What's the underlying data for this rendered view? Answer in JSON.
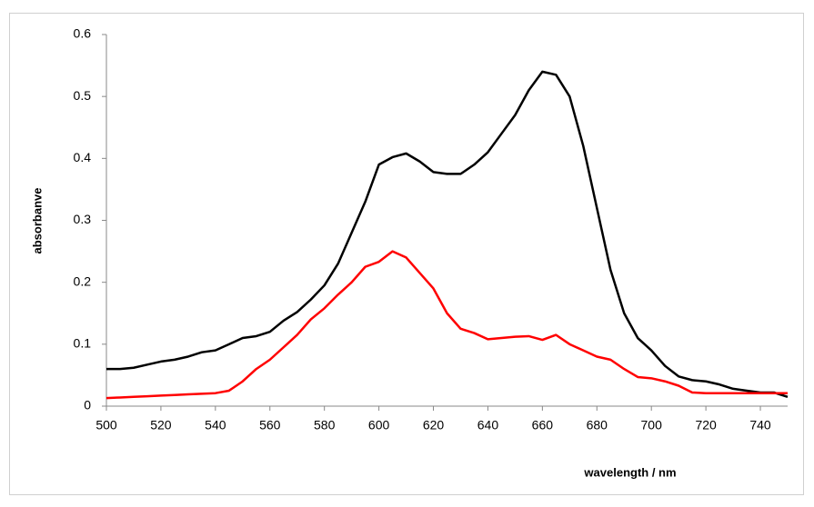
{
  "chart_data": {
    "type": "line",
    "x_label": "wavelength / nm",
    "y_label": "absorbanve",
    "x": [
      500,
      505,
      510,
      515,
      520,
      525,
      530,
      535,
      540,
      545,
      550,
      555,
      560,
      565,
      570,
      575,
      580,
      585,
      590,
      595,
      600,
      605,
      610,
      615,
      620,
      625,
      630,
      635,
      640,
      645,
      650,
      655,
      660,
      665,
      670,
      675,
      680,
      685,
      690,
      695,
      700,
      705,
      710,
      715,
      720,
      725,
      730,
      735,
      740,
      745,
      750
    ],
    "series": [
      {
        "color": "#000000",
        "values": [
          0.06,
          0.06,
          0.062,
          0.067,
          0.072,
          0.075,
          0.08,
          0.087,
          0.09,
          0.1,
          0.11,
          0.113,
          0.12,
          0.138,
          0.152,
          0.172,
          0.195,
          0.23,
          0.28,
          0.33,
          0.39,
          0.402,
          0.408,
          0.395,
          0.378,
          0.375,
          0.375,
          0.39,
          0.41,
          0.44,
          0.47,
          0.51,
          0.54,
          0.535,
          0.5,
          0.42,
          0.32,
          0.22,
          0.15,
          0.11,
          0.09,
          0.065,
          0.048,
          0.042,
          0.04,
          0.035,
          0.028,
          0.025,
          0.022,
          0.022,
          0.015
        ]
      },
      {
        "color": "#ff0000",
        "values": [
          0.013,
          0.014,
          0.015,
          0.016,
          0.017,
          0.018,
          0.019,
          0.02,
          0.021,
          0.025,
          0.04,
          0.06,
          0.075,
          0.095,
          0.115,
          0.14,
          0.158,
          0.18,
          0.2,
          0.225,
          0.233,
          0.25,
          0.24,
          0.215,
          0.19,
          0.15,
          0.125,
          0.118,
          0.108,
          0.11,
          0.112,
          0.113,
          0.107,
          0.115,
          0.1,
          0.09,
          0.08,
          0.075,
          0.06,
          0.047,
          0.045,
          0.04,
          0.033,
          0.022,
          0.021,
          0.021,
          0.021,
          0.021,
          0.021,
          0.021,
          0.021
        ]
      }
    ],
    "xlim": [
      500,
      750
    ],
    "xticks": [
      500,
      520,
      540,
      560,
      580,
      600,
      620,
      640,
      660,
      680,
      700,
      720,
      740
    ],
    "ylim": [
      0,
      0.6
    ],
    "yticks": [
      0,
      0.1,
      0.2,
      0.3,
      0.4,
      0.5,
      0.6
    ],
    "grid": false
  }
}
